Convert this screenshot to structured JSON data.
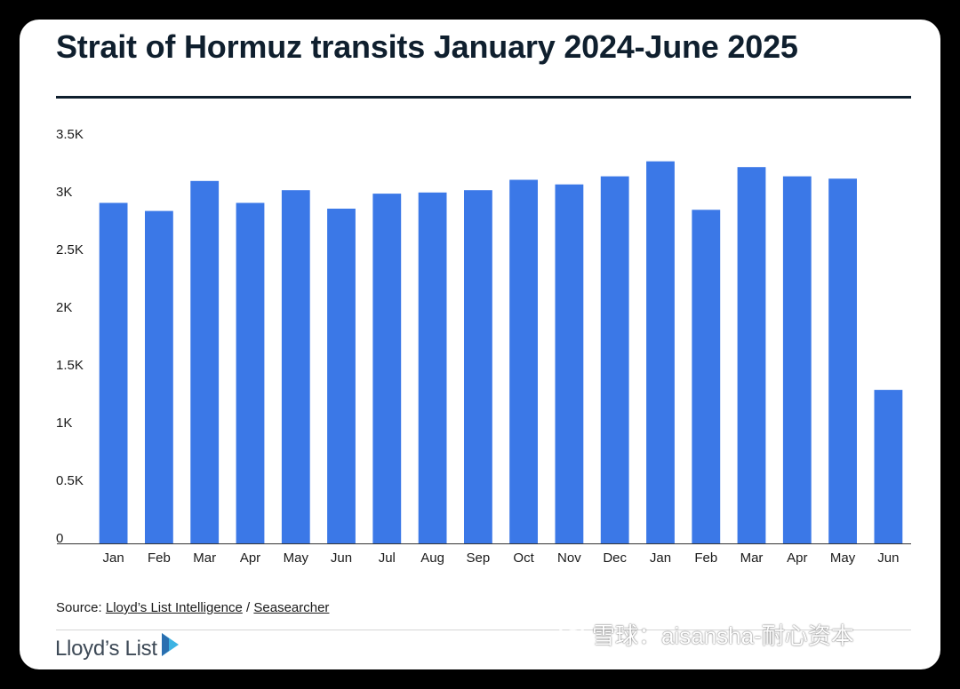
{
  "colors": {
    "bar": "#3b78e7",
    "title": "#0f1f2e",
    "text": "#1a1a1a",
    "logo": "#3e4a57",
    "logo_accent": "#3db3e3"
  },
  "chart_data": {
    "type": "bar",
    "title": "Strait of Hormuz transits January 2024-June 2025",
    "xlabel": "",
    "ylabel": "",
    "categories": [
      "Jan",
      "Feb",
      "Mar",
      "Apr",
      "May",
      "Jun",
      "Jul",
      "Aug",
      "Sep",
      "Oct",
      "Nov",
      "Dec",
      "Jan",
      "Feb",
      "Mar",
      "Apr",
      "May",
      "Jun"
    ],
    "values": [
      2950,
      2880,
      3140,
      2950,
      3060,
      2900,
      3030,
      3040,
      3060,
      3150,
      3110,
      3180,
      3310,
      2890,
      3260,
      3180,
      3160,
      1330
    ],
    "ylim": [
      0,
      3500
    ],
    "yticks": [
      {
        "value": 0,
        "label": "0"
      },
      {
        "value": 500,
        "label": "0.5K"
      },
      {
        "value": 1000,
        "label": "1K"
      },
      {
        "value": 1500,
        "label": "1.5K"
      },
      {
        "value": 2000,
        "label": "2K"
      },
      {
        "value": 2500,
        "label": "2.5K"
      },
      {
        "value": 3000,
        "label": "3K"
      },
      {
        "value": 3500,
        "label": "3.5K"
      }
    ],
    "grid": false,
    "legend": "none"
  },
  "source": {
    "prefix": "Source: ",
    "link1": "Lloyd’s List Intelligence",
    "separator": " / ",
    "link2": "Seasearcher"
  },
  "logo": {
    "text": "Lloyd’s List",
    "icon": "play-triangle-icon"
  },
  "watermark": {
    "text": "雪球：aisansha-耐心资本",
    "icon": "snowball-icon"
  }
}
